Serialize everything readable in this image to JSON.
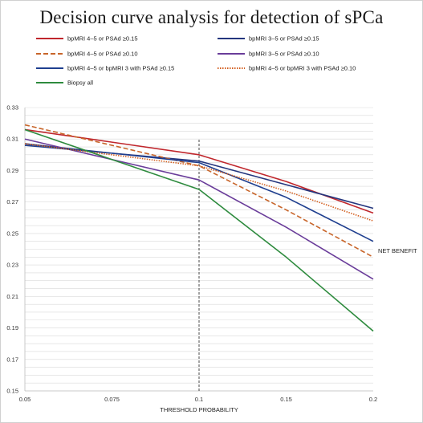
{
  "chart_data": {
    "type": "line",
    "title": "Decision curve analysis for detection of sPCa",
    "xlabel": "THRESHOLD PROBABILITY",
    "ylabel": "",
    "annotation": "NET BENEFIT",
    "categories": [
      "0.05",
      "0.075",
      "0.1",
      "0.15",
      "0.2"
    ],
    "x": [
      0.05,
      0.075,
      0.1,
      0.15,
      0.2
    ],
    "ylim": [
      0.15,
      0.33
    ],
    "yticks": [
      "0.15",
      "0.17",
      "0.19",
      "0.21",
      "0.23",
      "0.25",
      "0.27",
      "0.29",
      "0.31",
      "0.33"
    ],
    "grid": true,
    "legend_position": "top",
    "vline_x": 0.1,
    "series": [
      {
        "name": "bpMRI 4–5 or PSAd ≥0.15",
        "color": "#c0272d",
        "dash": "solid",
        "values": [
          0.316,
          0.308,
          0.3,
          0.283,
          0.263
        ]
      },
      {
        "name": "bpMRI 3–5 or PSAd ≥0.15",
        "color": "#24367e",
        "dash": "solid",
        "values": [
          0.307,
          0.301,
          0.296,
          0.281,
          0.266
        ]
      },
      {
        "name": "bpMRI 4–5 or PSAd ≥0.10",
        "color": "#c8652a",
        "dash": "dashed",
        "values": [
          0.319,
          0.306,
          0.293,
          0.265,
          0.235
        ]
      },
      {
        "name": "bpMRI 3–5 or PSAd ≥0.10",
        "color": "#6a3d9a",
        "dash": "solid",
        "values": [
          0.31,
          0.297,
          0.284,
          0.254,
          0.221
        ]
      },
      {
        "name": "bpMRI 4–5 or bpMRI 3 with PSAd ≥0.15",
        "color": "#1f3f8f",
        "dash": "solid",
        "values": [
          0.306,
          0.301,
          0.295,
          0.273,
          0.245
        ]
      },
      {
        "name": "bpMRI 4–5 or bpMRI 3 with PSAd ≥0.10",
        "color": "#d35f1f",
        "dash": "dotted",
        "values": [
          0.307,
          0.3,
          0.293,
          0.277,
          0.258
        ]
      },
      {
        "name": "Biopsy all",
        "color": "#2e8b3e",
        "dash": "solid",
        "values": [
          0.316,
          0.297,
          0.278,
          0.235,
          0.188
        ]
      }
    ]
  }
}
